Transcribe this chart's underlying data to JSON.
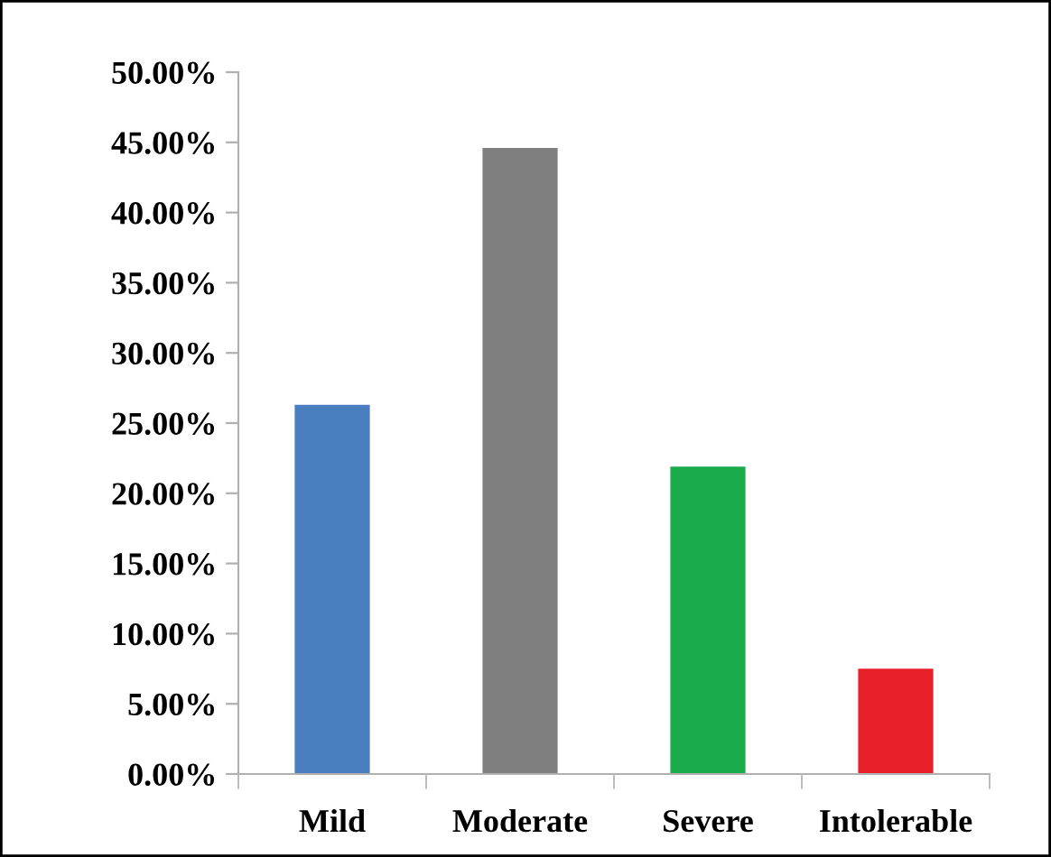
{
  "chart_data": {
    "type": "bar",
    "categories": [
      "Mild",
      "Moderate",
      "Severe",
      "Intolerable"
    ],
    "values": [
      26.3,
      44.6,
      21.9,
      7.5
    ],
    "colors": [
      "#4a7ebf",
      "#7f7f7f",
      "#1bab4b",
      "#e8202a"
    ],
    "ylim": [
      0,
      50
    ],
    "yticks": [
      {
        "value": 0,
        "label": "0.00%"
      },
      {
        "value": 5,
        "label": "5.00%"
      },
      {
        "value": 10,
        "label": "10.00%"
      },
      {
        "value": 15,
        "label": "15.00%"
      },
      {
        "value": 20,
        "label": "20.00%"
      },
      {
        "value": 25,
        "label": "25.00%"
      },
      {
        "value": 30,
        "label": "30.00%"
      },
      {
        "value": 35,
        "label": "35.00%"
      },
      {
        "value": 40,
        "label": "40.00%"
      },
      {
        "value": 45,
        "label": "45.00%"
      },
      {
        "value": 50,
        "label": "50.00%"
      }
    ],
    "grid": false,
    "legend": false
  }
}
